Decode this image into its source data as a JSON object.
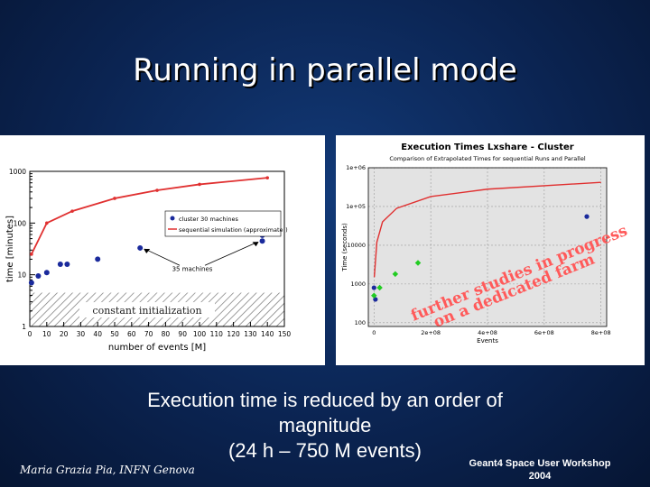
{
  "slide": {
    "title": "Running in parallel mode",
    "caption_lines": [
      "Execution time is reduced by an order of",
      "magnitude",
      "(24 h – 750 M events)"
    ],
    "footer_left": "Maria Grazia Pia, INFN Genova",
    "footer_right_lines": [
      "Geant4 Space User Workshop",
      "2004"
    ],
    "overlay_lines": [
      "further studies in progress",
      "on a dedicated farm"
    ]
  },
  "chart_data": [
    {
      "type": "scatter",
      "xlabel": "number of events [M]",
      "ylabel": "time [minutes]",
      "yscale": "log",
      "xlim": [
        0,
        150
      ],
      "ylim": [
        1,
        1000
      ],
      "xticks": [
        0,
        10,
        20,
        30,
        40,
        50,
        60,
        70,
        80,
        90,
        100,
        110,
        120,
        130,
        140,
        150
      ],
      "yticks": [
        1,
        10,
        100,
        1000
      ],
      "ytick_labels": [
        "1",
        "10",
        "100",
        "1000"
      ],
      "legend_position": "top-right",
      "annotations": [
        "constant initialization",
        "35 machines"
      ],
      "series": [
        {
          "name": "cluster 30 machines",
          "color": "#1a2a9c",
          "x": [
            1,
            5,
            10,
            18,
            22,
            40,
            65,
            137,
            137
          ],
          "y": [
            7,
            9.5,
            11,
            16,
            16,
            20,
            33,
            45,
            58
          ]
        },
        {
          "name": "sequential simulation (approximate!)",
          "color": "#e03030",
          "x": [
            1,
            10,
            25,
            50,
            75,
            100,
            140
          ],
          "y": [
            25,
            100,
            170,
            300,
            430,
            560,
            750
          ]
        }
      ]
    },
    {
      "type": "scatter",
      "title": "Execution Times Lxshare - Cluster",
      "subtitle": "Comparison of Extrapolated Times for sequential Runs and Parallel",
      "xlabel": "Events",
      "ylabel": "Time (seconds)",
      "yscale": "log",
      "xlim": [
        -20000000,
        820000000
      ],
      "ylim": [
        80,
        1000000
      ],
      "grid": true,
      "xticks": [
        0,
        200000000,
        400000000,
        600000000,
        800000000
      ],
      "xtick_labels": [
        "0",
        "2e+08",
        "4e+08",
        "6e+08",
        "8e+08"
      ],
      "yticks": [
        100,
        1000,
        10000,
        100000,
        1000000
      ],
      "ytick_labels": [
        "100",
        "1000",
        "10000",
        "1e+05",
        "1e+06"
      ],
      "series": [
        {
          "color": "#e03030",
          "x": [
            1000000,
            10000000,
            30000000,
            80000000,
            200000000,
            400000000,
            800000000
          ],
          "y": [
            1500,
            12000,
            40000,
            90000,
            180000,
            280000,
            420000
          ]
        },
        {
          "color": "#1a2a9c",
          "x": [
            0,
            5000000,
            750000000
          ],
          "y": [
            800,
            400,
            55000
          ]
        },
        {
          "color": "#22cc22",
          "x": [
            0,
            20000000,
            75000000,
            155000000
          ],
          "y": [
            500,
            800,
            1800,
            3500
          ]
        }
      ]
    }
  ]
}
